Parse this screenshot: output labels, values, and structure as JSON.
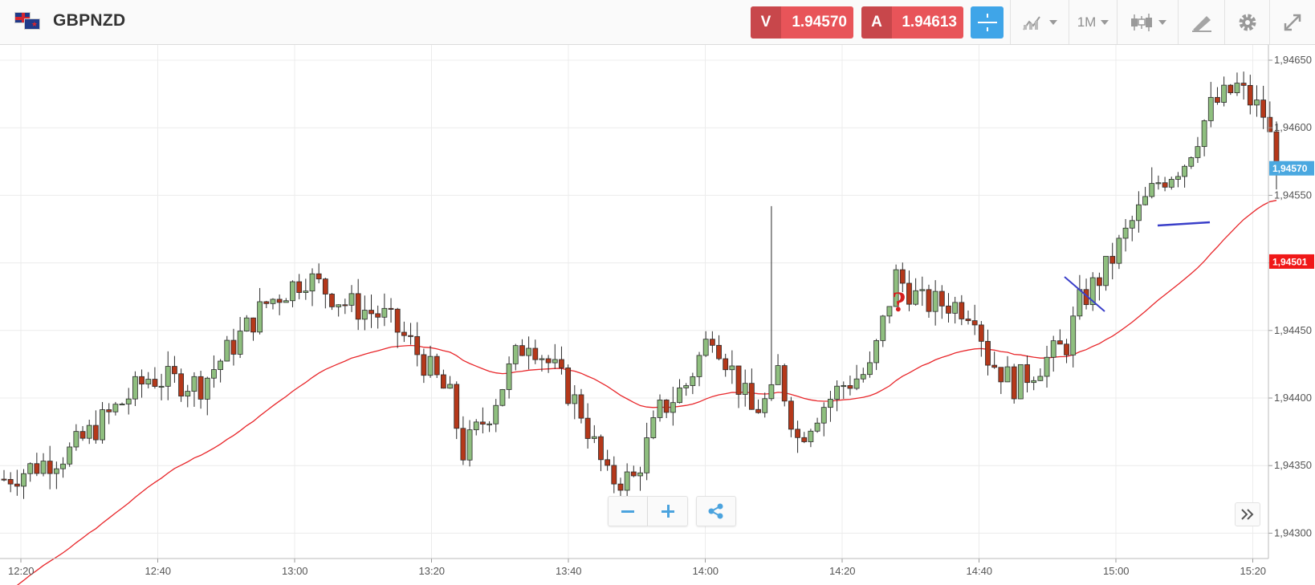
{
  "instrument": {
    "symbol": "GBPNZD",
    "flag_icon": "gb-nz-flag-icon"
  },
  "quotes": {
    "sell_label": "V",
    "sell_price": "1.94570",
    "buy_label": "A",
    "buy_price": "1.94613",
    "sell_color": "#e85459",
    "buy_color": "#e85459"
  },
  "toolbar": {
    "crosshair_icon": "crosshair-icon",
    "chart_type_icon": "line-chart-icon",
    "timeframe": "1M",
    "candles_icon": "candlestick-icon",
    "draw_icon": "drawing-tools-icon",
    "settings_icon": "gear-icon",
    "fullscreen_icon": "fullscreen-icon",
    "accent_color": "#3fa5e8"
  },
  "chart_data": {
    "type": "candlestick",
    "y_ticks": [
      "1,94650",
      "1,94600",
      "1,94550",
      "1,94500",
      "1,94450",
      "1,94400",
      "1,94350",
      "1,94300"
    ],
    "x_ticks": [
      "12:20",
      "12:40",
      "13:00",
      "13:20",
      "13:40",
      "14:00",
      "14:20",
      "14:40",
      "15:00",
      "15:20"
    ],
    "ylim": [
      1.94285,
      1.9466
    ],
    "current_price_tag": "1,94570",
    "current_price_value": 1.9457,
    "ma_price_tag": "1,94501",
    "ma_price_value": 1.94501,
    "up_color": "#8fbf7f",
    "down_color": "#b5381a",
    "ma_color": "#e8262a",
    "annotation_line_color": "#3a3fc9",
    "annotation_mark": "?",
    "annotation_mark_color": "#d61f1f",
    "grid": true
  },
  "controls": {
    "zoom_out_icon": "minus-icon",
    "zoom_in_icon": "plus-icon",
    "share_icon": "share-icon",
    "scroll_right_icon": "double-chevron-right-icon"
  }
}
